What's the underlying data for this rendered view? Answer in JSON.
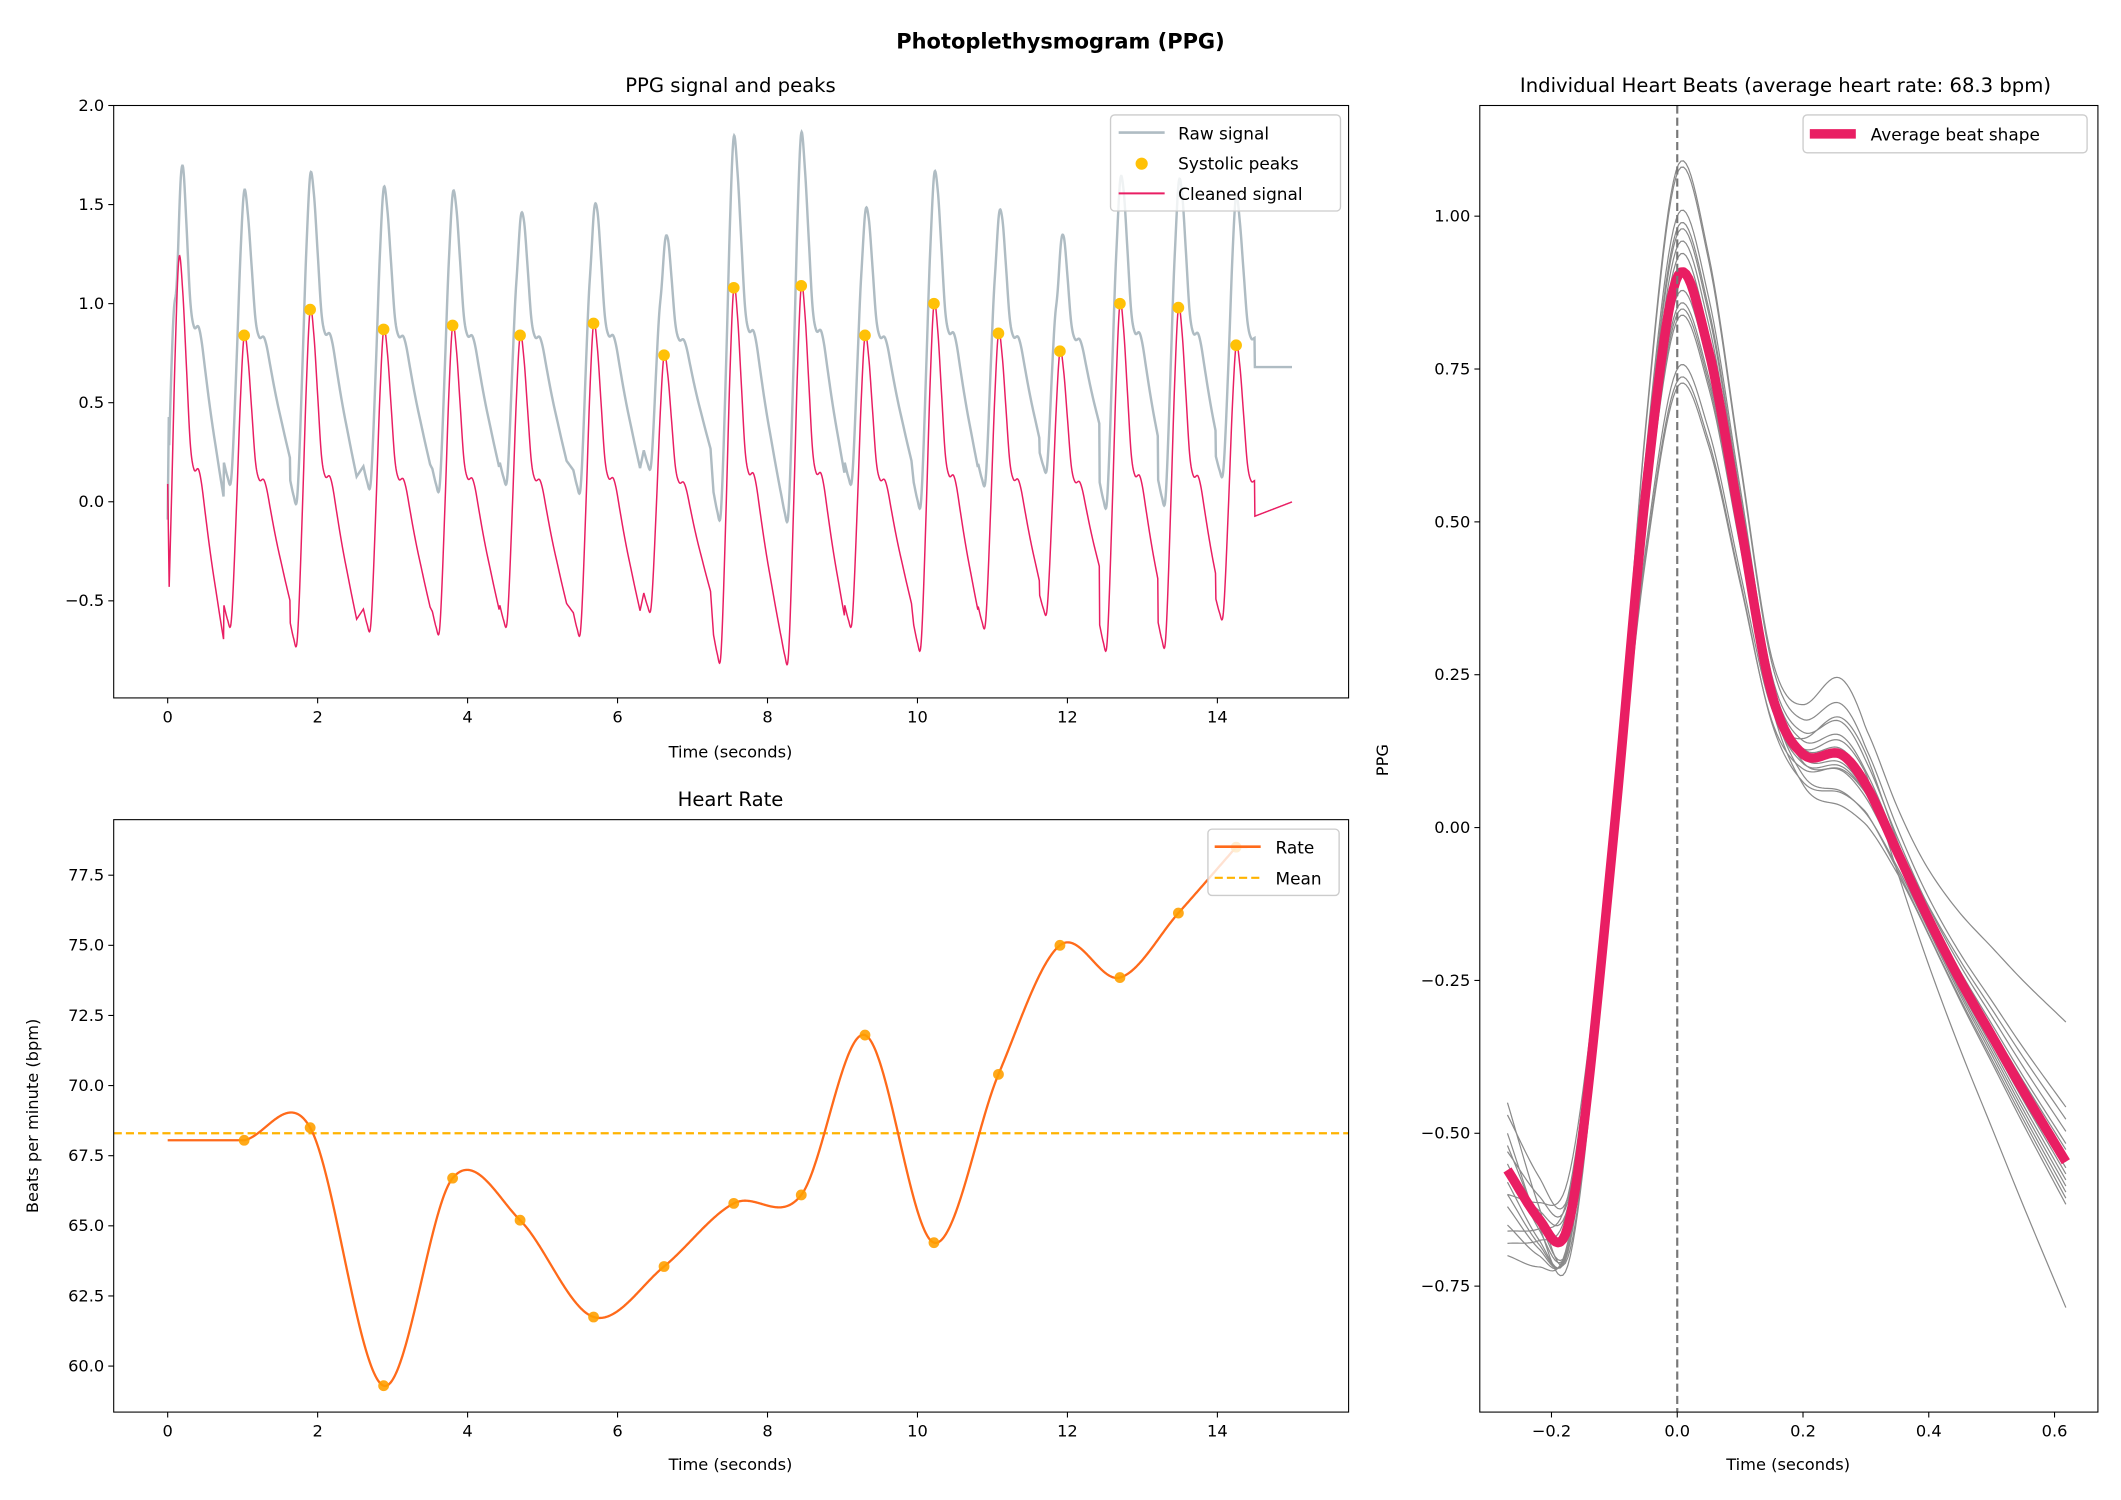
{
  "suptitle": "Photoplethysmogram (PPG)",
  "colors": {
    "raw": "#afbcc3",
    "cleaned": "#e91e63",
    "peaks": "#ffc107",
    "rate": "#ff6a1a",
    "rate_markers": "#ffa000",
    "mean": "#ffb300",
    "beats": "#8a8a8a",
    "average_beat": "#e91e63"
  },
  "chart_data": [
    {
      "type": "line",
      "title": "PPG signal and peaks",
      "xlabel": "Time (seconds)",
      "ylabel": "",
      "xlim": [
        -0.72,
        15.75
      ],
      "ylim": [
        -0.99,
        2.0
      ],
      "xticks": [
        0,
        2,
        4,
        6,
        8,
        10,
        12,
        14
      ],
      "xtick_labels": [
        "0",
        "2",
        "4",
        "6",
        "8",
        "10",
        "12",
        "14"
      ],
      "yticks": [
        -0.5,
        0.0,
        0.5,
        1.0,
        1.5,
        2.0
      ],
      "ytick_labels": [
        "−0.5",
        "0.0",
        "0.5",
        "1.0",
        "1.5",
        "2.0"
      ],
      "legend": {
        "position": "top-right",
        "entries": [
          "Raw signal",
          "Systolic peaks",
          "Cleaned signal"
        ]
      },
      "initial_peak": {
        "t": 0.15,
        "cleaned": 1.23,
        "raw": 1.31
      },
      "peaks_t": [
        1.02,
        1.9,
        2.88,
        3.8,
        4.7,
        5.68,
        6.62,
        7.55,
        8.45,
        9.3,
        10.22,
        11.08,
        11.9,
        12.7,
        13.48,
        14.25
      ],
      "peaks_cleaned": [
        0.84,
        0.97,
        0.87,
        0.89,
        0.84,
        0.9,
        0.74,
        1.08,
        1.09,
        0.84,
        1.0,
        0.85,
        0.76,
        1.0,
        0.98,
        0.79
      ],
      "peaks_raw": [
        1.57,
        1.64,
        1.58,
        1.54,
        1.38,
        1.41,
        1.23,
        1.85,
        1.87,
        1.43,
        1.63,
        1.4,
        1.2,
        1.59,
        1.58,
        1.55
      ],
      "signal_end_t": 15.0
    },
    {
      "type": "line",
      "title": "Heart Rate",
      "xlabel": "Time (seconds)",
      "ylabel": "Beats per minute (bpm)",
      "xlim": [
        -0.72,
        15.75
      ],
      "ylim": [
        58.36,
        79.48
      ],
      "xticks": [
        0,
        2,
        4,
        6,
        8,
        10,
        12,
        14
      ],
      "xtick_labels": [
        "0",
        "2",
        "4",
        "6",
        "8",
        "10",
        "12",
        "14"
      ],
      "yticks": [
        60,
        62.5,
        65,
        67.5,
        70,
        72.5,
        75,
        77.5
      ],
      "ytick_labels": [
        "60.0",
        "62.5",
        "65.0",
        "67.5",
        "70.0",
        "72.5",
        "75.0",
        "77.5"
      ],
      "legend": {
        "position": "top-right",
        "entries": [
          "Rate",
          "Mean"
        ]
      },
      "x": [
        1.02,
        1.9,
        2.88,
        3.8,
        4.7,
        5.68,
        6.62,
        7.55,
        8.45,
        9.3,
        10.22,
        11.08,
        11.9,
        12.7,
        13.48,
        14.25
      ],
      "y": [
        68.05,
        68.5,
        59.3,
        66.7,
        65.2,
        61.75,
        63.55,
        65.8,
        66.1,
        71.8,
        64.4,
        70.4,
        75.0,
        73.85,
        76.15,
        78.5
      ],
      "rate_start": 68.05,
      "mean": 68.3
    },
    {
      "type": "line",
      "title": "Individual Heart Beats (average heart rate: 68.3 bpm)",
      "xlabel": "Time (seconds)",
      "ylabel": "PPG",
      "xlim": [
        -0.314,
        0.669
      ],
      "ylim": [
        -0.956,
        1.181
      ],
      "xticks": [
        -0.2,
        0.0,
        0.2,
        0.4,
        0.6
      ],
      "xtick_labels": [
        "−0.2",
        "0.0",
        "0.2",
        "0.4",
        "0.6"
      ],
      "yticks": [
        -0.75,
        -0.5,
        -0.25,
        0.0,
        0.25,
        0.5,
        0.75,
        1.0
      ],
      "ytick_labels": [
        "−0.75",
        "−0.50",
        "−0.25",
        "0.00",
        "0.25",
        "0.50",
        "0.75",
        "1.00"
      ],
      "legend": {
        "position": "top-right",
        "entries": [
          "Average beat shape"
        ]
      },
      "average_beat": {
        "t": [
          -0.27,
          -0.22,
          -0.18,
          -0.15,
          -0.1,
          -0.05,
          0.0,
          0.05,
          0.1,
          0.15,
          0.2,
          0.26,
          0.3,
          0.35,
          0.4,
          0.45,
          0.5,
          0.55,
          0.62
        ],
        "v": [
          -0.56,
          -0.64,
          -0.67,
          -0.5,
          0.0,
          0.55,
          0.9,
          0.78,
          0.5,
          0.22,
          0.12,
          0.12,
          0.07,
          -0.04,
          -0.15,
          -0.25,
          -0.34,
          -0.43,
          -0.55
        ]
      },
      "beats_peak": [
        1.08,
        1.07,
        1.0,
        0.98,
        0.97,
        0.95,
        0.93,
        0.9,
        0.87,
        0.85,
        0.84,
        0.83,
        0.75,
        0.73,
        0.72
      ],
      "beats_start": [
        -0.45,
        -0.5,
        -0.52,
        -0.55,
        -0.58,
        -0.6,
        -0.62,
        -0.65,
        -0.47,
        -0.7,
        -0.53,
        -0.57,
        -0.68,
        -0.66,
        -0.6
      ],
      "beats_end": [
        -0.32,
        -0.46,
        -0.5,
        -0.52,
        -0.55,
        -0.58,
        -0.59,
        -0.6,
        -0.62,
        -0.48,
        -0.79,
        -0.56,
        -0.53,
        -0.61,
        -0.57
      ],
      "beats_notch": [
        0.22,
        0.18,
        0.16,
        0.14,
        0.12,
        0.1,
        0.09,
        0.06,
        0.04,
        0.13,
        0.15,
        0.11,
        0.2,
        0.08,
        0.12
      ],
      "zero_line": 0.0
    }
  ]
}
